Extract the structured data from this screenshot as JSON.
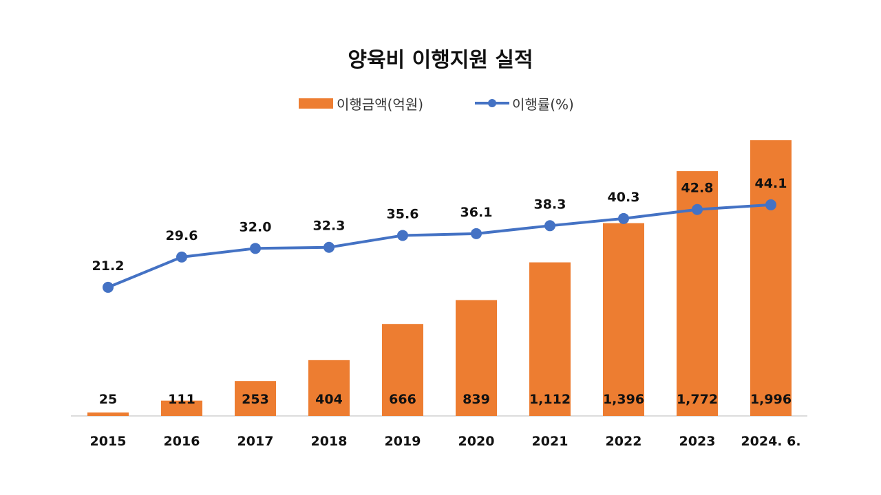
{
  "chart_data": {
    "type": "bar+line",
    "title": "양육비 이행지원 실적",
    "categories": [
      "2015",
      "2016",
      "2017",
      "2018",
      "2019",
      "2020",
      "2021",
      "2022",
      "2023",
      "2024. 6."
    ],
    "series": [
      {
        "name": "이행금액(억원)",
        "type": "bar",
        "axis": "primary",
        "color": "#ED7D31",
        "values": [
          25,
          111,
          253,
          404,
          666,
          839,
          1112,
          1396,
          1772,
          1996
        ],
        "labels": [
          "25",
          "111",
          "253",
          "404",
          "666",
          "839",
          "1,112",
          "1,396",
          "1,772",
          "1,996"
        ]
      },
      {
        "name": "이행률(%)",
        "type": "line",
        "axis": "secondary",
        "color": "#4472C4",
        "values": [
          21.2,
          29.6,
          32.0,
          32.3,
          35.6,
          36.1,
          38.3,
          40.3,
          42.8,
          44.1
        ],
        "labels": [
          "21.2",
          "29.6",
          "32.0",
          "32.3",
          "35.6",
          "36.1",
          "38.3",
          "40.3",
          "42.8",
          "44.1"
        ]
      }
    ],
    "legend": "top",
    "grid": false,
    "ylim": [
      0,
      2000
    ]
  }
}
